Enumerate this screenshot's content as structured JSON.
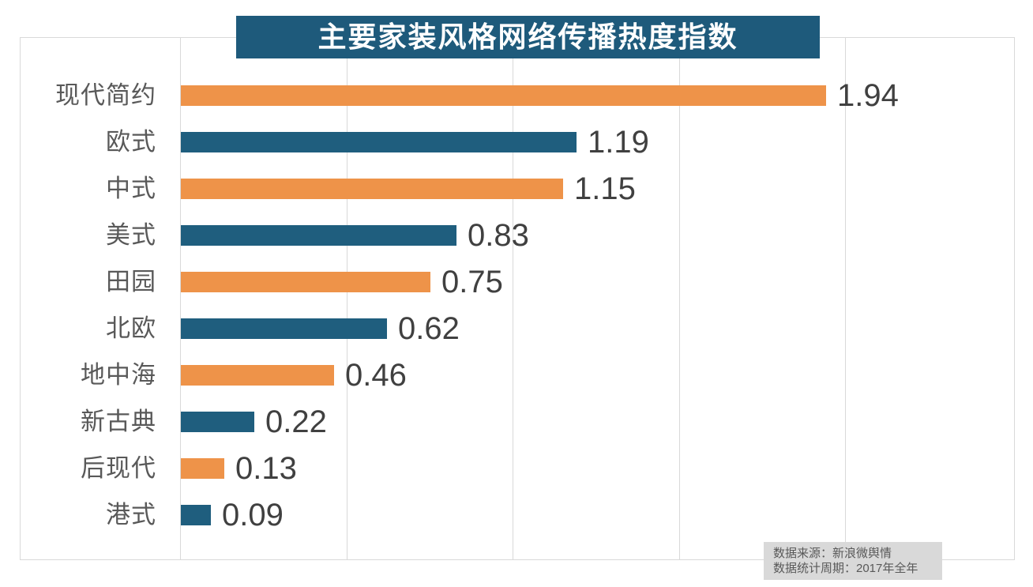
{
  "chart_data": {
    "type": "bar",
    "orientation": "horizontal",
    "title": "主要家装风格网络传播热度指数",
    "categories": [
      "现代简约",
      "欧式",
      "中式",
      "美式",
      "田园",
      "北欧",
      "地中海",
      "新古典",
      "后现代",
      "港式"
    ],
    "values": [
      1.94,
      1.19,
      1.15,
      0.83,
      0.75,
      0.62,
      0.46,
      0.22,
      0.13,
      0.09
    ],
    "value_labels": [
      "1.94",
      "1.19",
      "1.15",
      "0.83",
      "0.75",
      "0.62",
      "0.46",
      "0.22",
      "0.13",
      "0.09"
    ],
    "xlim": [
      0,
      2.5
    ],
    "gridline_values": [
      0,
      0.5,
      1.0,
      1.5,
      2.0
    ],
    "grid": true,
    "legend": "none",
    "series_colors_alternating": [
      "#EE9349",
      "#1F5E7E"
    ]
  },
  "source_note": {
    "line1": "数据来源：新浪微舆情",
    "line2": "数据统计周期：2017年全年"
  },
  "colors": {
    "bar_orange": "#EE9349",
    "bar_blue": "#1F5E7E",
    "banner_bg": "#1E5A7B",
    "banner_text": "#FFFFFF",
    "grid_line": "#D9D9D9",
    "frame_border": "#D9D9D9",
    "category_label": "#595959",
    "value_label": "#404040",
    "note_bg": "#D9D9D9",
    "note_text": "#595959",
    "background": "#FFFFFF"
  }
}
